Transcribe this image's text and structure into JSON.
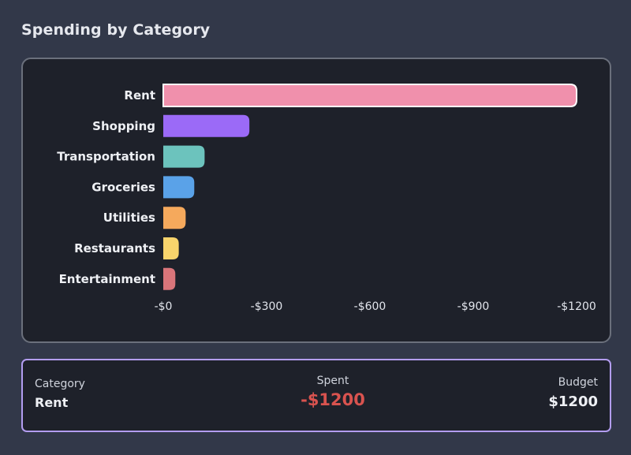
{
  "header": {
    "title": "Spending by Category"
  },
  "chart_data": {
    "type": "bar",
    "orientation": "horizontal",
    "categories": [
      "Rent",
      "Shopping",
      "Transportation",
      "Groceries",
      "Utilities",
      "Restaurants",
      "Entertainment"
    ],
    "values": [
      -1200,
      -250,
      -120,
      -90,
      -65,
      -45,
      -35
    ],
    "colors": [
      "#f090ac",
      "#9b6af7",
      "#6cc3bd",
      "#5aa2e8",
      "#f5a95c",
      "#f8d46c",
      "#d9757a"
    ],
    "highlighted": "Rent",
    "xlim": [
      0,
      -1200
    ],
    "xticks": [
      0,
      -300,
      -600,
      -900,
      -1200
    ],
    "xtick_labels": [
      "-$0",
      "-$300",
      "-$600",
      "-$900",
      "-$1200"
    ],
    "title": "",
    "xlabel": "",
    "ylabel": "",
    "grid": false
  },
  "details": {
    "category_label": "Category",
    "category_value": "Rent",
    "spent_label": "Spent",
    "spent_value": "-$1200",
    "budget_label": "Budget",
    "budget_value": "$1200"
  }
}
